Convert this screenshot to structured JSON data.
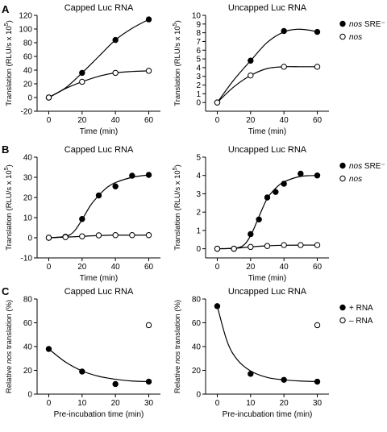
{
  "figure": {
    "panel_letters": [
      "A",
      "B",
      "C"
    ]
  },
  "chart_data": [
    {
      "id": "A-left",
      "panel": "A",
      "type": "line",
      "title": "Capped Luc RNA",
      "xlabel": "Time (min)",
      "ylabel": "Translation (RLU/s x 10⁵)",
      "xlim": [
        -7,
        67
      ],
      "ylim": [
        -20,
        120
      ],
      "xticks": [
        0,
        20,
        40,
        60
      ],
      "yticks": [
        -20,
        0,
        20,
        40,
        60,
        80,
        100,
        120
      ],
      "series": [
        {
          "name": "nos SRE⁻",
          "marker": "filled",
          "x": [
            0,
            20,
            40,
            60
          ],
          "values": [
            0,
            36,
            84,
            114
          ],
          "curve": [
            [
              0,
              0
            ],
            [
              10,
              14
            ],
            [
              20,
              36
            ],
            [
              30,
              60
            ],
            [
              40,
              84
            ],
            [
              50,
              101
            ],
            [
              60,
              114
            ]
          ]
        },
        {
          "name": "nos",
          "marker": "open",
          "x": [
            0,
            20,
            40,
            60
          ],
          "values": [
            0,
            23,
            36,
            39
          ],
          "curve": [
            [
              0,
              0
            ],
            [
              10,
              13
            ],
            [
              20,
              23
            ],
            [
              30,
              31
            ],
            [
              40,
              36
            ],
            [
              50,
              38
            ],
            [
              60,
              39
            ]
          ]
        }
      ]
    },
    {
      "id": "A-right",
      "panel": "A",
      "type": "line",
      "title": "Uncapped Luc RNA",
      "xlabel": "Time (min)",
      "ylabel": "Translation (RLU/s x 10⁵)",
      "xlim": [
        -7,
        67
      ],
      "ylim": [
        -1,
        10
      ],
      "xticks": [
        0,
        20,
        40,
        60
      ],
      "yticks": [
        0,
        1,
        2,
        3,
        4,
        5,
        6,
        7,
        8,
        9,
        10
      ],
      "series": [
        {
          "name": "nos SRE⁻",
          "marker": "filled",
          "x": [
            0,
            20,
            40,
            60
          ],
          "values": [
            0,
            4.8,
            8.2,
            8.1
          ],
          "curve": [
            [
              0,
              0
            ],
            [
              10,
              2.6
            ],
            [
              20,
              4.8
            ],
            [
              30,
              6.9
            ],
            [
              40,
              8.1
            ],
            [
              48,
              8.4
            ],
            [
              55,
              8.3
            ],
            [
              60,
              8.1
            ]
          ]
        },
        {
          "name": "nos",
          "marker": "open",
          "x": [
            0,
            20,
            40,
            60
          ],
          "values": [
            0,
            3.1,
            4.1,
            4.1
          ],
          "curve": [
            [
              0,
              0
            ],
            [
              10,
              1.8
            ],
            [
              20,
              3.1
            ],
            [
              30,
              3.9
            ],
            [
              40,
              4.1
            ],
            [
              50,
              4.1
            ],
            [
              60,
              4.1
            ]
          ]
        }
      ],
      "legend": [
        "nos SRE⁻",
        "nos"
      ]
    },
    {
      "id": "B-left",
      "panel": "B",
      "type": "line",
      "title": "Capped Luc RNA",
      "xlabel": "Time (min)",
      "ylabel": "Translation (RLU/s x 10⁵)",
      "xlim": [
        -7,
        67
      ],
      "ylim": [
        -10,
        40
      ],
      "xticks": [
        0,
        20,
        40,
        60
      ],
      "yticks": [
        -10,
        0,
        10,
        20,
        30,
        40
      ],
      "series": [
        {
          "name": "nos SRE⁻",
          "marker": "filled",
          "x": [
            0,
            10,
            20,
            30,
            40,
            50,
            60
          ],
          "values": [
            0,
            0.5,
            9.3,
            21,
            25.5,
            30.8,
            31.2
          ],
          "curve": [
            [
              0,
              0
            ],
            [
              10,
              0.7
            ],
            [
              15,
              3
            ],
            [
              20,
              9
            ],
            [
              25,
              16
            ],
            [
              30,
              21
            ],
            [
              35,
              25
            ],
            [
              40,
              27.4
            ],
            [
              50,
              30
            ],
            [
              60,
              31.2
            ]
          ]
        },
        {
          "name": "nos",
          "marker": "open",
          "x": [
            0,
            10,
            20,
            30,
            40,
            50,
            60
          ],
          "values": [
            0,
            0.3,
            0.7,
            1.2,
            1.3,
            1.3,
            1.3
          ],
          "curve": [
            [
              0,
              0
            ],
            [
              10,
              0.3
            ],
            [
              20,
              0.7
            ],
            [
              30,
              1.1
            ],
            [
              40,
              1.3
            ],
            [
              50,
              1.3
            ],
            [
              60,
              1.3
            ]
          ]
        }
      ]
    },
    {
      "id": "B-right",
      "panel": "B",
      "type": "line",
      "title": "Uncapped Luc RNA",
      "xlabel": "Time (min)",
      "ylabel": "Translation (RLU/s x 10⁵)",
      "xlim": [
        -7,
        67
      ],
      "ylim": [
        -0.5,
        5
      ],
      "xticks": [
        0,
        20,
        40,
        60
      ],
      "yticks": [
        0,
        1,
        2,
        3,
        4,
        5
      ],
      "series": [
        {
          "name": "nos SRE⁻",
          "marker": "filled",
          "x": [
            0,
            10,
            20,
            25,
            30,
            35,
            40,
            50,
            60
          ],
          "values": [
            0,
            0,
            0.8,
            1.6,
            2.8,
            3.1,
            3.55,
            4.1,
            4.0
          ],
          "curve": [
            [
              0,
              0
            ],
            [
              12,
              0.05
            ],
            [
              17,
              0.3
            ],
            [
              21,
              0.9
            ],
            [
              25,
              1.75
            ],
            [
              30,
              2.75
            ],
            [
              35,
              3.3
            ],
            [
              40,
              3.65
            ],
            [
              50,
              3.95
            ],
            [
              60,
              4.0
            ]
          ]
        },
        {
          "name": "nos",
          "marker": "open",
          "x": [
            0,
            10,
            20,
            30,
            40,
            50,
            60
          ],
          "values": [
            0,
            0,
            0.1,
            0.15,
            0.2,
            0.2,
            0.2
          ],
          "curve": [
            [
              0,
              0
            ],
            [
              10,
              0.02
            ],
            [
              20,
              0.1
            ],
            [
              30,
              0.16
            ],
            [
              40,
              0.19
            ],
            [
              50,
              0.2
            ],
            [
              60,
              0.2
            ]
          ]
        }
      ],
      "legend": [
        "nos SRE⁻",
        "nos"
      ]
    },
    {
      "id": "C-left",
      "panel": "C",
      "type": "scatter",
      "title": "Capped Luc RNA",
      "xlabel": "Pre-incubation time (min)",
      "ylabel": "Relative nos translation (%)",
      "xlim": [
        -3.5,
        33.5
      ],
      "ylim": [
        0,
        80
      ],
      "xticks": [
        0,
        10,
        20,
        30
      ],
      "yticks": [
        0,
        20,
        40,
        60,
        80
      ],
      "series": [
        {
          "name": "+ RNA",
          "marker": "filled",
          "x": [
            0,
            10,
            20,
            30
          ],
          "values": [
            38,
            19,
            8.5,
            10.5
          ],
          "curve": [
            [
              0,
              38
            ],
            [
              5,
              27
            ],
            [
              10,
              19.5
            ],
            [
              15,
              15
            ],
            [
              20,
              12.5
            ],
            [
              25,
              11
            ],
            [
              30,
              10.5
            ]
          ]
        },
        {
          "name": "– RNA",
          "marker": "open",
          "x": [
            30
          ],
          "values": [
            58
          ]
        }
      ]
    },
    {
      "id": "C-right",
      "panel": "C",
      "type": "scatter",
      "title": "Uncapped Luc RNA",
      "xlabel": "Pre-incubation time (min)",
      "ylabel": "Relative nos translation (%)",
      "xlim": [
        -3.5,
        33.5
      ],
      "ylim": [
        0,
        80
      ],
      "xticks": [
        0,
        10,
        20,
        30
      ],
      "yticks": [
        0,
        20,
        40,
        60,
        80
      ],
      "series": [
        {
          "name": "+ RNA",
          "marker": "filled",
          "x": [
            0,
            10,
            20,
            30
          ],
          "values": [
            74,
            17,
            12,
            10.5
          ],
          "curve": [
            [
              0,
              74
            ],
            [
              3,
              44
            ],
            [
              6,
              29
            ],
            [
              10,
              19.5
            ],
            [
              15,
              14
            ],
            [
              20,
              12
            ],
            [
              25,
              11
            ],
            [
              30,
              10.5
            ]
          ]
        },
        {
          "name": "– RNA",
          "marker": "open",
          "x": [
            30
          ],
          "values": [
            58
          ]
        }
      ],
      "legend": [
        "+ RNA",
        "– RNA"
      ]
    }
  ]
}
